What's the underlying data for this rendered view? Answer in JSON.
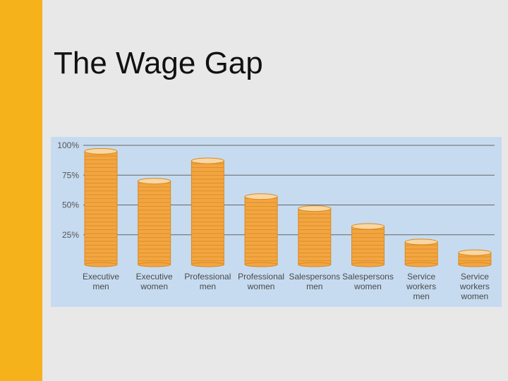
{
  "slide": {
    "title": "The Wage Gap"
  },
  "colors": {
    "accent_bar": "#f5b21b",
    "background": "#e8e8e8",
    "chart_background": "#c6dbf0",
    "coin": "#f2a541",
    "coin_edge": "#d98a20",
    "coin_top": "#f8d7a4",
    "gridline": "#666666"
  },
  "chart_data": {
    "type": "bar",
    "title": "",
    "xlabel": "",
    "ylabel": "",
    "ylim": [
      0,
      100
    ],
    "y_ticks": [
      {
        "value": 100,
        "label": "100%"
      },
      {
        "value": 75,
        "label": "75%"
      },
      {
        "value": 50,
        "label": "50%"
      },
      {
        "value": 25,
        "label": "25%"
      }
    ],
    "grid": true,
    "categories": [
      "Executive\nmen",
      "Executive\nwomen",
      "Professional\nmen",
      "Professional\nwomen",
      "Salespersons\nmen",
      "Salespersons\nwomen",
      "Service\nworkers\nmen",
      "Service\nworkers\nwomen"
    ],
    "values": [
      95,
      70,
      87,
      57,
      47,
      32,
      19,
      10
    ]
  }
}
